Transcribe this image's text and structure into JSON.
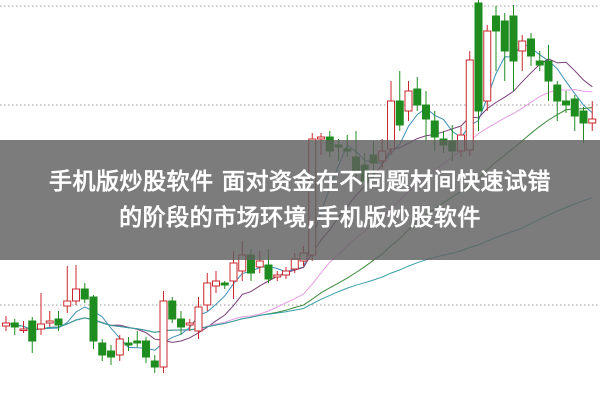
{
  "overlay": {
    "line1": "手机版炒股软件 面对资金在不同题材间快速试错",
    "line2": "的阶段的市场环境,手机版炒股软件"
  },
  "chart_data": {
    "type": "candlestick",
    "grid": "horizontal dotted",
    "colors": {
      "up": "#c8282d",
      "down": "#1e8c1e",
      "grid": "#9a9a9a"
    },
    "moving_averages": [
      {
        "period": 5,
        "color": "#3a8fb7"
      },
      {
        "period": 10,
        "color": "#7b3f7b"
      },
      {
        "period": 20,
        "color": "#e79be6"
      },
      {
        "period": 30,
        "color": "#3c8a3c"
      },
      {
        "period": 60,
        "color": "#3aa0a8"
      }
    ],
    "gridlines": [
      395,
      296,
      96
    ],
    "candles": [
      [
        75,
        78,
        85,
        70
      ],
      [
        78,
        74,
        82,
        66
      ],
      [
        72,
        72,
        80,
        68
      ],
      [
        80,
        60,
        84,
        48
      ],
      [
        72,
        77,
        108,
        66
      ],
      [
        78,
        80,
        90,
        74
      ],
      [
        82,
        76,
        90,
        70
      ],
      [
        95,
        100,
        135,
        88
      ],
      [
        100,
        112,
        136,
        96
      ],
      [
        112,
        102,
        118,
        98
      ],
      [
        104,
        60,
        106,
        52
      ],
      [
        58,
        46,
        62,
        40
      ],
      [
        50,
        44,
        56,
        36
      ],
      [
        46,
        62,
        66,
        40
      ],
      [
        58,
        56,
        64,
        50
      ],
      [
        60,
        58,
        70,
        54
      ],
      [
        60,
        44,
        64,
        38
      ],
      [
        40,
        34,
        46,
        28
      ],
      [
        34,
        100,
        110,
        28
      ],
      [
        100,
        82,
        104,
        78
      ],
      [
        82,
        74,
        90,
        66
      ],
      [
        76,
        78,
        82,
        70
      ],
      [
        70,
        94,
        104,
        62
      ],
      [
        96,
        118,
        128,
        90
      ],
      [
        115,
        120,
        130,
        108
      ],
      [
        118,
        116,
        120,
        112
      ],
      [
        120,
        138,
        150,
        102
      ],
      [
        130,
        146,
        160,
        120
      ],
      [
        146,
        128,
        152,
        120
      ],
      [
        134,
        140,
        150,
        128
      ],
      [
        136,
        122,
        152,
        118
      ],
      [
        124,
        126,
        130,
        120
      ],
      [
        126,
        130,
        134,
        122
      ],
      [
        132,
        142,
        148,
        128
      ],
      [
        140,
        148,
        155,
        135
      ],
      [
        146,
        262,
        268,
        140
      ],
      [
        262,
        264,
        268,
        246
      ],
      [
        264,
        250,
        270,
        244
      ],
      [
        256,
        254,
        262,
        240
      ],
      [
        252,
        250,
        266,
        244
      ],
      [
        244,
        230,
        270,
        220
      ],
      [
        236,
        220,
        248,
        210
      ],
      [
        246,
        238,
        260,
        220
      ],
      [
        240,
        250,
        262,
        232
      ],
      [
        252,
        300,
        320,
        246
      ],
      [
        300,
        276,
        330,
        270
      ],
      [
        290,
        310,
        320,
        280
      ],
      [
        312,
        296,
        324,
        290
      ],
      [
        296,
        282,
        310,
        260
      ],
      [
        280,
        264,
        290,
        250
      ],
      [
        262,
        256,
        270,
        248
      ],
      [
        260,
        250,
        276,
        240
      ],
      [
        250,
        266,
        274,
        244
      ],
      [
        251,
        341,
        350,
        245
      ],
      [
        398,
        290,
        401,
        270
      ],
      [
        300,
        370,
        376,
        290
      ],
      [
        385,
        370,
        395,
        330
      ],
      [
        380,
        350,
        388,
        320
      ],
      [
        385,
        340,
        396,
        310
      ],
      [
        350,
        360,
        366,
        330
      ],
      [
        362,
        345,
        368,
        335
      ],
      [
        340,
        336,
        350,
        330
      ],
      [
        340,
        320,
        356,
        300
      ],
      [
        316,
        300,
        320,
        280
      ],
      [
        300,
        296,
        310,
        288
      ],
      [
        302,
        285,
        306,
        270
      ],
      [
        290,
        278,
        294,
        258
      ],
      [
        278,
        282,
        300,
        270
      ]
    ]
  }
}
